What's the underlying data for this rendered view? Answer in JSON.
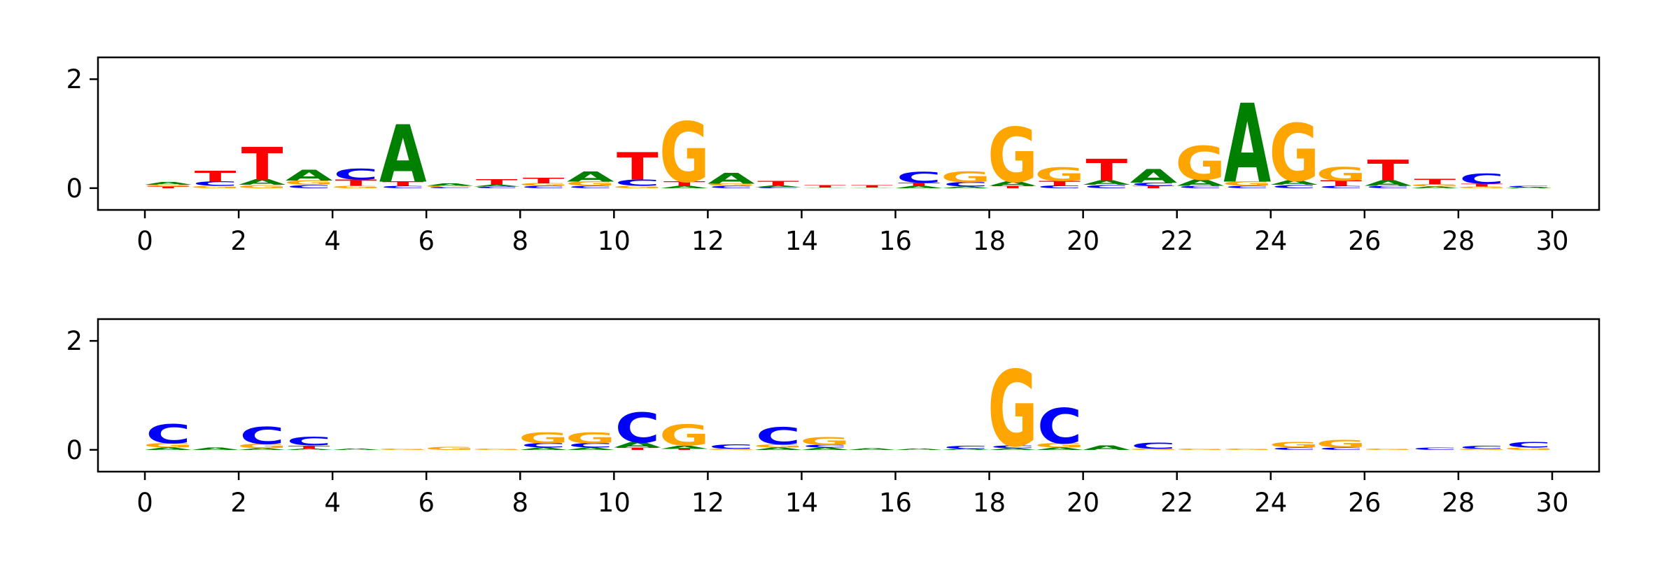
{
  "colors": {
    "A": "#008000",
    "C": "#0000ff",
    "G": "#ffa500",
    "T": "#ff0000",
    "axis": "#000000"
  },
  "chart_data": [
    {
      "type": "sequence-logo",
      "title": "",
      "xlabel": "",
      "ylabel": "",
      "xlim": [
        -1,
        31
      ],
      "ylim": [
        -0.4,
        2.4
      ],
      "xticks": [
        "0",
        "2",
        "4",
        "6",
        "8",
        "10",
        "12",
        "14",
        "16",
        "18",
        "20",
        "22",
        "24",
        "26",
        "28",
        "30"
      ],
      "yticks": [
        "0",
        "2"
      ],
      "xtick_values": [
        0,
        2,
        4,
        6,
        8,
        10,
        12,
        14,
        16,
        18,
        20,
        22,
        24,
        26,
        28,
        30
      ],
      "ytick_values": [
        0,
        2
      ],
      "grid": false,
      "positions": [
        {
          "x": 0.5,
          "letters": [
            [
              "T",
              0.03
            ],
            [
              "G",
              0.03
            ],
            [
              "A",
              0.05
            ]
          ]
        },
        {
          "x": 1.5,
          "letters": [
            [
              "G",
              0.04
            ],
            [
              "C",
              0.08
            ],
            [
              "T",
              0.2
            ]
          ]
        },
        {
          "x": 2.5,
          "letters": [
            [
              "G",
              0.06
            ],
            [
              "A",
              0.1
            ],
            [
              "T",
              0.6
            ]
          ]
        },
        {
          "x": 3.5,
          "letters": [
            [
              "C",
              0.06
            ],
            [
              "G",
              0.08
            ],
            [
              "A",
              0.2
            ]
          ]
        },
        {
          "x": 4.5,
          "letters": [
            [
              "G",
              0.04
            ],
            [
              "T",
              0.12
            ],
            [
              "C",
              0.2
            ]
          ]
        },
        {
          "x": 5.5,
          "letters": [
            [
              "C",
              0.04
            ],
            [
              "T",
              0.08
            ],
            [
              "A",
              1.05
            ]
          ]
        },
        {
          "x": 6.5,
          "letters": [
            [
              "C",
              0.02
            ],
            [
              "G",
              0.02
            ],
            [
              "A",
              0.04
            ]
          ]
        },
        {
          "x": 7.5,
          "letters": [
            [
              "C",
              0.03
            ],
            [
              "A",
              0.03
            ],
            [
              "T",
              0.1
            ]
          ]
        },
        {
          "x": 8.5,
          "letters": [
            [
              "C",
              0.04
            ],
            [
              "G",
              0.05
            ],
            [
              "T",
              0.1
            ]
          ]
        },
        {
          "x": 9.5,
          "letters": [
            [
              "C",
              0.04
            ],
            [
              "G",
              0.08
            ],
            [
              "A",
              0.18
            ]
          ]
        },
        {
          "x": 10.5,
          "letters": [
            [
              "G",
              0.04
            ],
            [
              "C",
              0.12
            ],
            [
              "T",
              0.5
            ]
          ]
        },
        {
          "x": 11.5,
          "letters": [
            [
              "A",
              0.04
            ],
            [
              "T",
              0.08
            ],
            [
              "G",
              1.1
            ]
          ]
        },
        {
          "x": 12.5,
          "letters": [
            [
              "C",
              0.04
            ],
            [
              "G",
              0.04
            ],
            [
              "A",
              0.2
            ]
          ]
        },
        {
          "x": 13.5,
          "letters": [
            [
              "C",
              0.02
            ],
            [
              "A",
              0.03
            ],
            [
              "T",
              0.08
            ]
          ]
        },
        {
          "x": 14.5,
          "letters": [
            [
              "A",
              0.01
            ],
            [
              "T",
              0.04
            ]
          ]
        },
        {
          "x": 15.5,
          "letters": [
            [
              "A",
              0.01
            ],
            [
              "T",
              0.04
            ]
          ]
        },
        {
          "x": 16.5,
          "letters": [
            [
              "A",
              0.04
            ],
            [
              "T",
              0.06
            ],
            [
              "C",
              0.2
            ]
          ]
        },
        {
          "x": 17.5,
          "letters": [
            [
              "A",
              0.03
            ],
            [
              "C",
              0.08
            ],
            [
              "G",
              0.2
            ]
          ]
        },
        {
          "x": 18.5,
          "letters": [
            [
              "T",
              0.04
            ],
            [
              "A",
              0.08
            ],
            [
              "G",
              1.0
            ]
          ]
        },
        {
          "x": 19.5,
          "letters": [
            [
              "C",
              0.05
            ],
            [
              "T",
              0.08
            ],
            [
              "G",
              0.25
            ]
          ]
        },
        {
          "x": 20.5,
          "letters": [
            [
              "C",
              0.06
            ],
            [
              "A",
              0.08
            ],
            [
              "T",
              0.4
            ]
          ]
        },
        {
          "x": 21.5,
          "letters": [
            [
              "T",
              0.04
            ],
            [
              "C",
              0.06
            ],
            [
              "A",
              0.25
            ]
          ]
        },
        {
          "x": 22.5,
          "letters": [
            [
              "C",
              0.04
            ],
            [
              "A",
              0.12
            ],
            [
              "G",
              0.62
            ]
          ]
        },
        {
          "x": 23.5,
          "letters": [
            [
              "C",
              0.04
            ],
            [
              "G",
              0.08
            ],
            [
              "A",
              1.45
            ]
          ]
        },
        {
          "x": 24.5,
          "letters": [
            [
              "C",
              0.06
            ],
            [
              "A",
              0.08
            ],
            [
              "G",
              1.05
            ]
          ]
        },
        {
          "x": 25.5,
          "letters": [
            [
              "C",
              0.04
            ],
            [
              "T",
              0.1
            ],
            [
              "G",
              0.25
            ]
          ]
        },
        {
          "x": 26.5,
          "letters": [
            [
              "C",
              0.04
            ],
            [
              "A",
              0.1
            ],
            [
              "T",
              0.38
            ]
          ]
        },
        {
          "x": 27.5,
          "letters": [
            [
              "A",
              0.03
            ],
            [
              "G",
              0.04
            ],
            [
              "T",
              0.1
            ]
          ]
        },
        {
          "x": 28.5,
          "letters": [
            [
              "G",
              0.03
            ],
            [
              "T",
              0.05
            ],
            [
              "C",
              0.18
            ]
          ]
        },
        {
          "x": 29.5,
          "letters": [
            [
              "A",
              0.02
            ],
            [
              "C",
              0.02
            ]
          ]
        }
      ]
    },
    {
      "type": "sequence-logo",
      "title": "",
      "xlabel": "",
      "ylabel": "",
      "xlim": [
        -1,
        31
      ],
      "ylim": [
        -0.4,
        2.4
      ],
      "xticks": [
        "0",
        "2",
        "4",
        "6",
        "8",
        "10",
        "12",
        "14",
        "16",
        "18",
        "20",
        "22",
        "24",
        "26",
        "28",
        "30"
      ],
      "yticks": [
        "0",
        "2"
      ],
      "xtick_values": [
        0,
        2,
        4,
        6,
        8,
        10,
        12,
        14,
        16,
        18,
        20,
        22,
        24,
        26,
        28,
        30
      ],
      "ytick_values": [
        0,
        2
      ],
      "grid": false,
      "positions": [
        {
          "x": 0.5,
          "letters": [
            [
              "A",
              0.04
            ],
            [
              "G",
              0.08
            ],
            [
              "C",
              0.35
            ]
          ]
        },
        {
          "x": 1.5,
          "letters": [
            [
              "A",
              0.04
            ]
          ]
        },
        {
          "x": 2.5,
          "letters": [
            [
              "A",
              0.03
            ],
            [
              "G",
              0.08
            ],
            [
              "C",
              0.32
            ]
          ]
        },
        {
          "x": 3.5,
          "letters": [
            [
              "A",
              0.02
            ],
            [
              "T",
              0.06
            ],
            [
              "C",
              0.16
            ]
          ]
        },
        {
          "x": 4.5,
          "letters": [
            [
              "A",
              0.02
            ]
          ]
        },
        {
          "x": 5.5,
          "letters": [
            [
              "G",
              0.02
            ]
          ]
        },
        {
          "x": 6.5,
          "letters": [
            [
              "G",
              0.06
            ]
          ]
        },
        {
          "x": 7.5,
          "letters": [
            [
              "G",
              0.02
            ]
          ]
        },
        {
          "x": 8.5,
          "letters": [
            [
              "A",
              0.04
            ],
            [
              "C",
              0.08
            ],
            [
              "G",
              0.2
            ]
          ]
        },
        {
          "x": 9.5,
          "letters": [
            [
              "A",
              0.04
            ],
            [
              "C",
              0.08
            ],
            [
              "G",
              0.2
            ]
          ]
        },
        {
          "x": 10.5,
          "letters": [
            [
              "T",
              0.04
            ],
            [
              "A",
              0.1
            ],
            [
              "C",
              0.55
            ]
          ]
        },
        {
          "x": 11.5,
          "letters": [
            [
              "T",
              0.02
            ],
            [
              "A",
              0.06
            ],
            [
              "G",
              0.38
            ]
          ]
        },
        {
          "x": 12.5,
          "letters": [
            [
              "G",
              0.02
            ],
            [
              "C",
              0.08
            ]
          ]
        },
        {
          "x": 13.5,
          "letters": [
            [
              "A",
              0.04
            ],
            [
              "G",
              0.06
            ],
            [
              "C",
              0.32
            ]
          ]
        },
        {
          "x": 14.5,
          "letters": [
            [
              "A",
              0.04
            ],
            [
              "C",
              0.05
            ],
            [
              "G",
              0.15
            ]
          ]
        },
        {
          "x": 15.5,
          "letters": [
            [
              "A",
              0.03
            ]
          ]
        },
        {
          "x": 16.5,
          "letters": [
            [
              "A",
              0.02
            ]
          ]
        },
        {
          "x": 17.5,
          "letters": [
            [
              "A",
              0.02
            ],
            [
              "C",
              0.06
            ]
          ]
        },
        {
          "x": 18.5,
          "letters": [
            [
              "A",
              0.03
            ],
            [
              "C",
              0.05
            ],
            [
              "G",
              1.4
            ]
          ]
        },
        {
          "x": 19.5,
          "letters": [
            [
              "A",
              0.04
            ],
            [
              "G",
              0.08
            ],
            [
              "C",
              0.65
            ]
          ]
        },
        {
          "x": 20.5,
          "letters": [
            [
              "A",
              0.08
            ]
          ]
        },
        {
          "x": 21.5,
          "letters": [
            [
              "G",
              0.02
            ],
            [
              "C",
              0.12
            ]
          ]
        },
        {
          "x": 22.5,
          "letters": [
            [
              "G",
              0.02
            ]
          ]
        },
        {
          "x": 23.5,
          "letters": [
            [
              "G",
              0.02
            ]
          ]
        },
        {
          "x": 24.5,
          "letters": [
            [
              "C",
              0.04
            ],
            [
              "G",
              0.1
            ]
          ]
        },
        {
          "x": 25.5,
          "letters": [
            [
              "C",
              0.04
            ],
            [
              "G",
              0.14
            ]
          ]
        },
        {
          "x": 26.5,
          "letters": [
            [
              "G",
              0.02
            ]
          ]
        },
        {
          "x": 27.5,
          "letters": [
            [
              "C",
              0.04
            ]
          ]
        },
        {
          "x": 28.5,
          "letters": [
            [
              "G",
              0.02
            ],
            [
              "C",
              0.06
            ]
          ]
        },
        {
          "x": 29.5,
          "letters": [
            [
              "G",
              0.04
            ],
            [
              "C",
              0.1
            ]
          ]
        }
      ]
    }
  ]
}
